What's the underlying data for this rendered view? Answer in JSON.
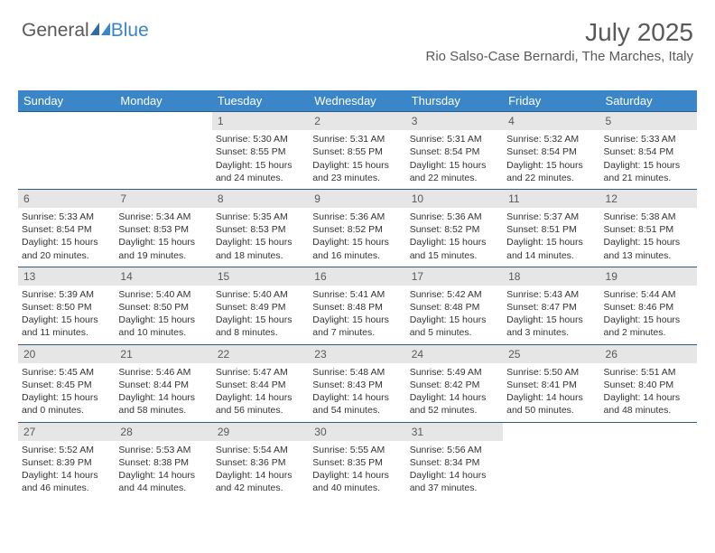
{
  "brand": {
    "part1": "General",
    "part2": "Blue"
  },
  "colors": {
    "header_bar": "#3a86c8",
    "header_text": "#ffffff",
    "daynum_bg": "#e6e6e6",
    "text_muted": "#595959",
    "week_border": "#2e5d84",
    "body_text": "#333333",
    "background": "#ffffff"
  },
  "title": "July 2025",
  "location": "Rio Salso-Case Bernardi, The Marches, Italy",
  "dow": [
    "Sunday",
    "Monday",
    "Tuesday",
    "Wednesday",
    "Thursday",
    "Friday",
    "Saturday"
  ],
  "weeks": [
    [
      {
        "blank": true
      },
      {
        "blank": true
      },
      {
        "n": "1",
        "sunrise": "5:30 AM",
        "sunset": "8:55 PM",
        "daylight": "15 hours and 24 minutes."
      },
      {
        "n": "2",
        "sunrise": "5:31 AM",
        "sunset": "8:55 PM",
        "daylight": "15 hours and 23 minutes."
      },
      {
        "n": "3",
        "sunrise": "5:31 AM",
        "sunset": "8:54 PM",
        "daylight": "15 hours and 22 minutes."
      },
      {
        "n": "4",
        "sunrise": "5:32 AM",
        "sunset": "8:54 PM",
        "daylight": "15 hours and 22 minutes."
      },
      {
        "n": "5",
        "sunrise": "5:33 AM",
        "sunset": "8:54 PM",
        "daylight": "15 hours and 21 minutes."
      }
    ],
    [
      {
        "n": "6",
        "sunrise": "5:33 AM",
        "sunset": "8:54 PM",
        "daylight": "15 hours and 20 minutes."
      },
      {
        "n": "7",
        "sunrise": "5:34 AM",
        "sunset": "8:53 PM",
        "daylight": "15 hours and 19 minutes."
      },
      {
        "n": "8",
        "sunrise": "5:35 AM",
        "sunset": "8:53 PM",
        "daylight": "15 hours and 18 minutes."
      },
      {
        "n": "9",
        "sunrise": "5:36 AM",
        "sunset": "8:52 PM",
        "daylight": "15 hours and 16 minutes."
      },
      {
        "n": "10",
        "sunrise": "5:36 AM",
        "sunset": "8:52 PM",
        "daylight": "15 hours and 15 minutes."
      },
      {
        "n": "11",
        "sunrise": "5:37 AM",
        "sunset": "8:51 PM",
        "daylight": "15 hours and 14 minutes."
      },
      {
        "n": "12",
        "sunrise": "5:38 AM",
        "sunset": "8:51 PM",
        "daylight": "15 hours and 13 minutes."
      }
    ],
    [
      {
        "n": "13",
        "sunrise": "5:39 AM",
        "sunset": "8:50 PM",
        "daylight": "15 hours and 11 minutes."
      },
      {
        "n": "14",
        "sunrise": "5:40 AM",
        "sunset": "8:50 PM",
        "daylight": "15 hours and 10 minutes."
      },
      {
        "n": "15",
        "sunrise": "5:40 AM",
        "sunset": "8:49 PM",
        "daylight": "15 hours and 8 minutes."
      },
      {
        "n": "16",
        "sunrise": "5:41 AM",
        "sunset": "8:48 PM",
        "daylight": "15 hours and 7 minutes."
      },
      {
        "n": "17",
        "sunrise": "5:42 AM",
        "sunset": "8:48 PM",
        "daylight": "15 hours and 5 minutes."
      },
      {
        "n": "18",
        "sunrise": "5:43 AM",
        "sunset": "8:47 PM",
        "daylight": "15 hours and 3 minutes."
      },
      {
        "n": "19",
        "sunrise": "5:44 AM",
        "sunset": "8:46 PM",
        "daylight": "15 hours and 2 minutes."
      }
    ],
    [
      {
        "n": "20",
        "sunrise": "5:45 AM",
        "sunset": "8:45 PM",
        "daylight": "15 hours and 0 minutes."
      },
      {
        "n": "21",
        "sunrise": "5:46 AM",
        "sunset": "8:44 PM",
        "daylight": "14 hours and 58 minutes."
      },
      {
        "n": "22",
        "sunrise": "5:47 AM",
        "sunset": "8:44 PM",
        "daylight": "14 hours and 56 minutes."
      },
      {
        "n": "23",
        "sunrise": "5:48 AM",
        "sunset": "8:43 PM",
        "daylight": "14 hours and 54 minutes."
      },
      {
        "n": "24",
        "sunrise": "5:49 AM",
        "sunset": "8:42 PM",
        "daylight": "14 hours and 52 minutes."
      },
      {
        "n": "25",
        "sunrise": "5:50 AM",
        "sunset": "8:41 PM",
        "daylight": "14 hours and 50 minutes."
      },
      {
        "n": "26",
        "sunrise": "5:51 AM",
        "sunset": "8:40 PM",
        "daylight": "14 hours and 48 minutes."
      }
    ],
    [
      {
        "n": "27",
        "sunrise": "5:52 AM",
        "sunset": "8:39 PM",
        "daylight": "14 hours and 46 minutes."
      },
      {
        "n": "28",
        "sunrise": "5:53 AM",
        "sunset": "8:38 PM",
        "daylight": "14 hours and 44 minutes."
      },
      {
        "n": "29",
        "sunrise": "5:54 AM",
        "sunset": "8:36 PM",
        "daylight": "14 hours and 42 minutes."
      },
      {
        "n": "30",
        "sunrise": "5:55 AM",
        "sunset": "8:35 PM",
        "daylight": "14 hours and 40 minutes."
      },
      {
        "n": "31",
        "sunrise": "5:56 AM",
        "sunset": "8:34 PM",
        "daylight": "14 hours and 37 minutes."
      },
      {
        "blank": true
      },
      {
        "blank": true
      }
    ]
  ],
  "labels": {
    "sunrise": "Sunrise:",
    "sunset": "Sunset:",
    "daylight": "Daylight:"
  }
}
